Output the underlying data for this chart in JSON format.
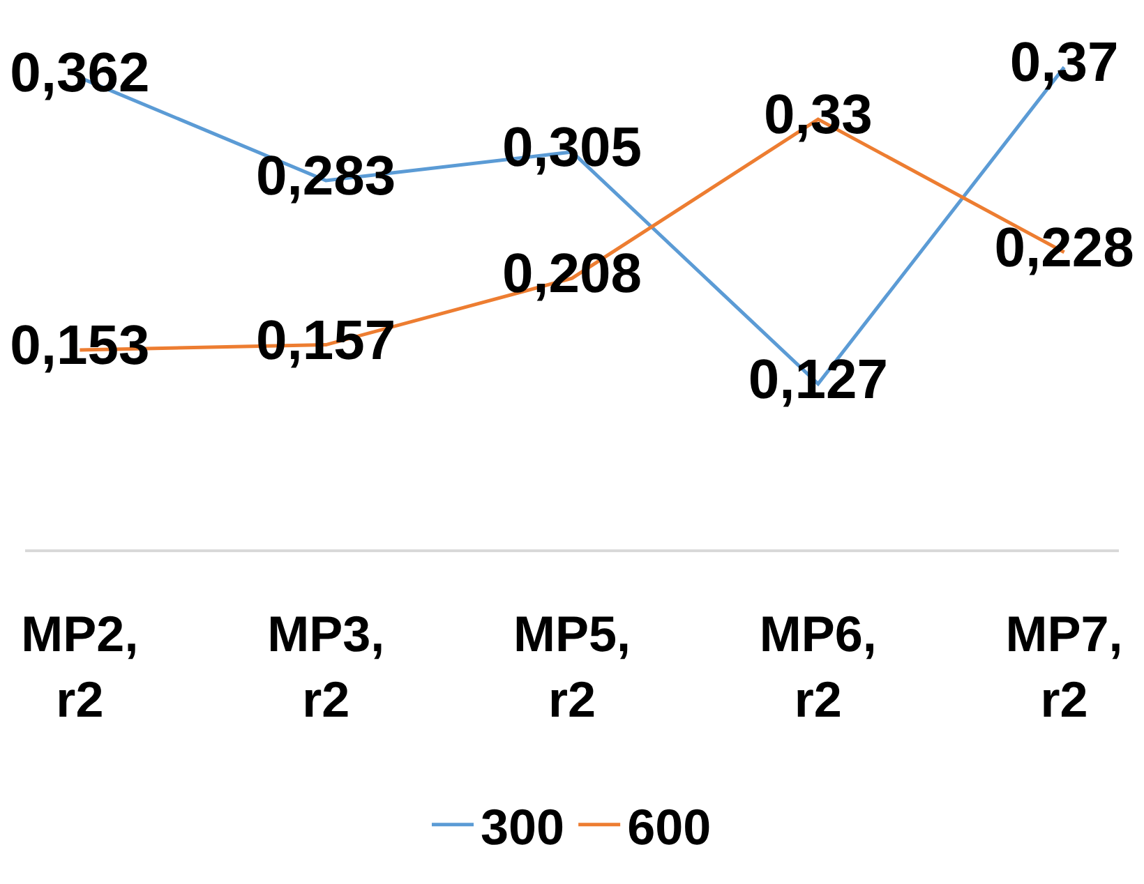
{
  "chart_data": {
    "type": "line",
    "categories": [
      "MP2, r2",
      "MP3, r2",
      "MP5, r2",
      "MP6, r2",
      "MP7, r2"
    ],
    "series": [
      {
        "name": "300",
        "color": "#5b9bd5",
        "values": [
          0.362,
          0.283,
          0.305,
          0.127,
          0.37
        ],
        "value_labels": [
          "0,362",
          "0,283",
          "0,305",
          "0,127",
          "0,37"
        ]
      },
      {
        "name": "600",
        "color": "#ed7d31",
        "values": [
          0.153,
          0.157,
          0.208,
          0.33,
          0.228
        ],
        "value_labels": [
          "0,153",
          "0,157",
          "0,208",
          "0,33",
          "0,228"
        ]
      }
    ],
    "tick_labels": "x",
    "grid": false,
    "legend": "bottom",
    "marker": "none",
    "line_style": "solid"
  }
}
